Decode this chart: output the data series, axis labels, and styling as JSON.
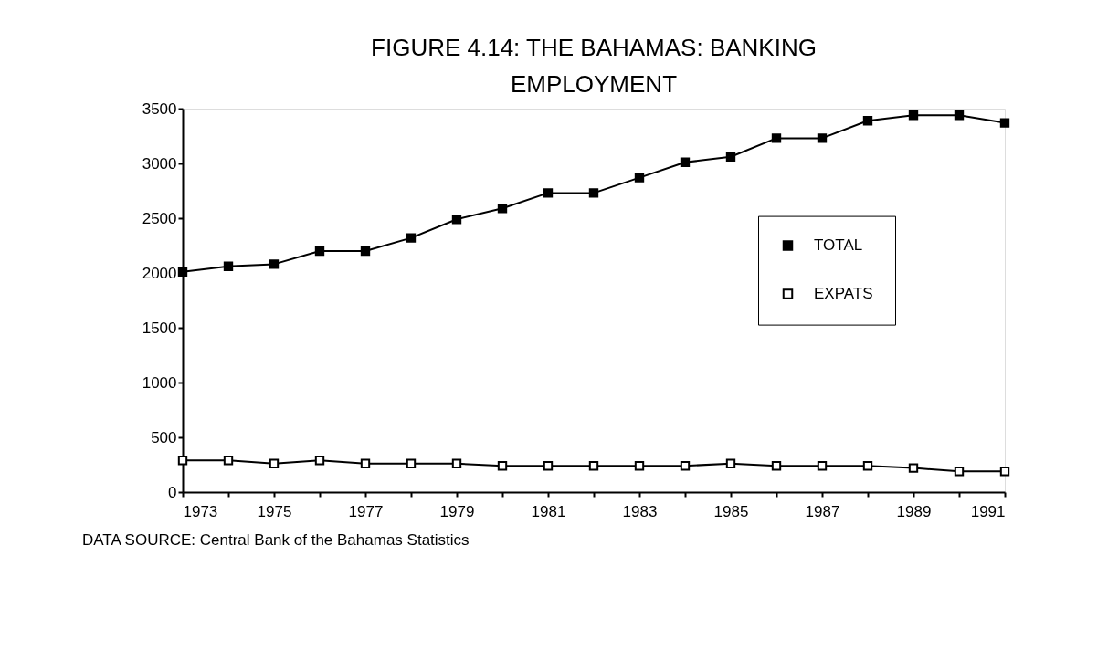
{
  "chart_data": {
    "type": "line",
    "title": "FIGURE 4.14: THE BAHAMAS: BANKING EMPLOYMENT",
    "annotations": [
      "DATA SOURCE: Central Bank of the Bahamas Statistics"
    ],
    "x": [
      1973,
      1974,
      1975,
      1976,
      1977,
      1978,
      1979,
      1980,
      1981,
      1982,
      1983,
      1984,
      1985,
      1986,
      1987,
      1988,
      1989,
      1990,
      1991
    ],
    "series": [
      {
        "name": "TOTAL",
        "color": "#000000",
        "marker": "square",
        "values": [
          2010,
          2060,
          2080,
          2200,
          2200,
          2320,
          2490,
          2590,
          2730,
          2730,
          2870,
          3010,
          3060,
          3230,
          3230,
          3390,
          3440,
          3440,
          3370
        ]
      },
      {
        "name": "EXPATS",
        "color": "#000000",
        "marker": "square",
        "values": [
          290,
          290,
          260,
          290,
          260,
          260,
          260,
          240,
          240,
          240,
          240,
          240,
          260,
          240,
          240,
          240,
          220,
          190,
          190
        ]
      }
    ],
    "xlim": [
      1973,
      1991
    ],
    "xticks": [
      1973,
      {
        "value": 1974,
        "label": null
      },
      1975,
      {
        "value": 1976,
        "label": null
      },
      1977,
      {
        "value": 1978,
        "label": null
      },
      1979,
      {
        "value": 1980,
        "label": null
      },
      1981,
      {
        "value": 1982,
        "label": null
      },
      1983,
      {
        "value": 1984,
        "label": null
      },
      1985,
      {
        "value": 1986,
        "label": null
      },
      1987,
      {
        "value": 1988,
        "label": null
      },
      1989,
      {
        "value": 1990,
        "label": null
      },
      1991
    ],
    "ylim": [
      0,
      3500
    ],
    "yticks": [
      0,
      500,
      1000,
      1500,
      2000,
      2500,
      3000,
      3500
    ],
    "grid": false,
    "legend": "right",
    "line_style": "solid"
  }
}
